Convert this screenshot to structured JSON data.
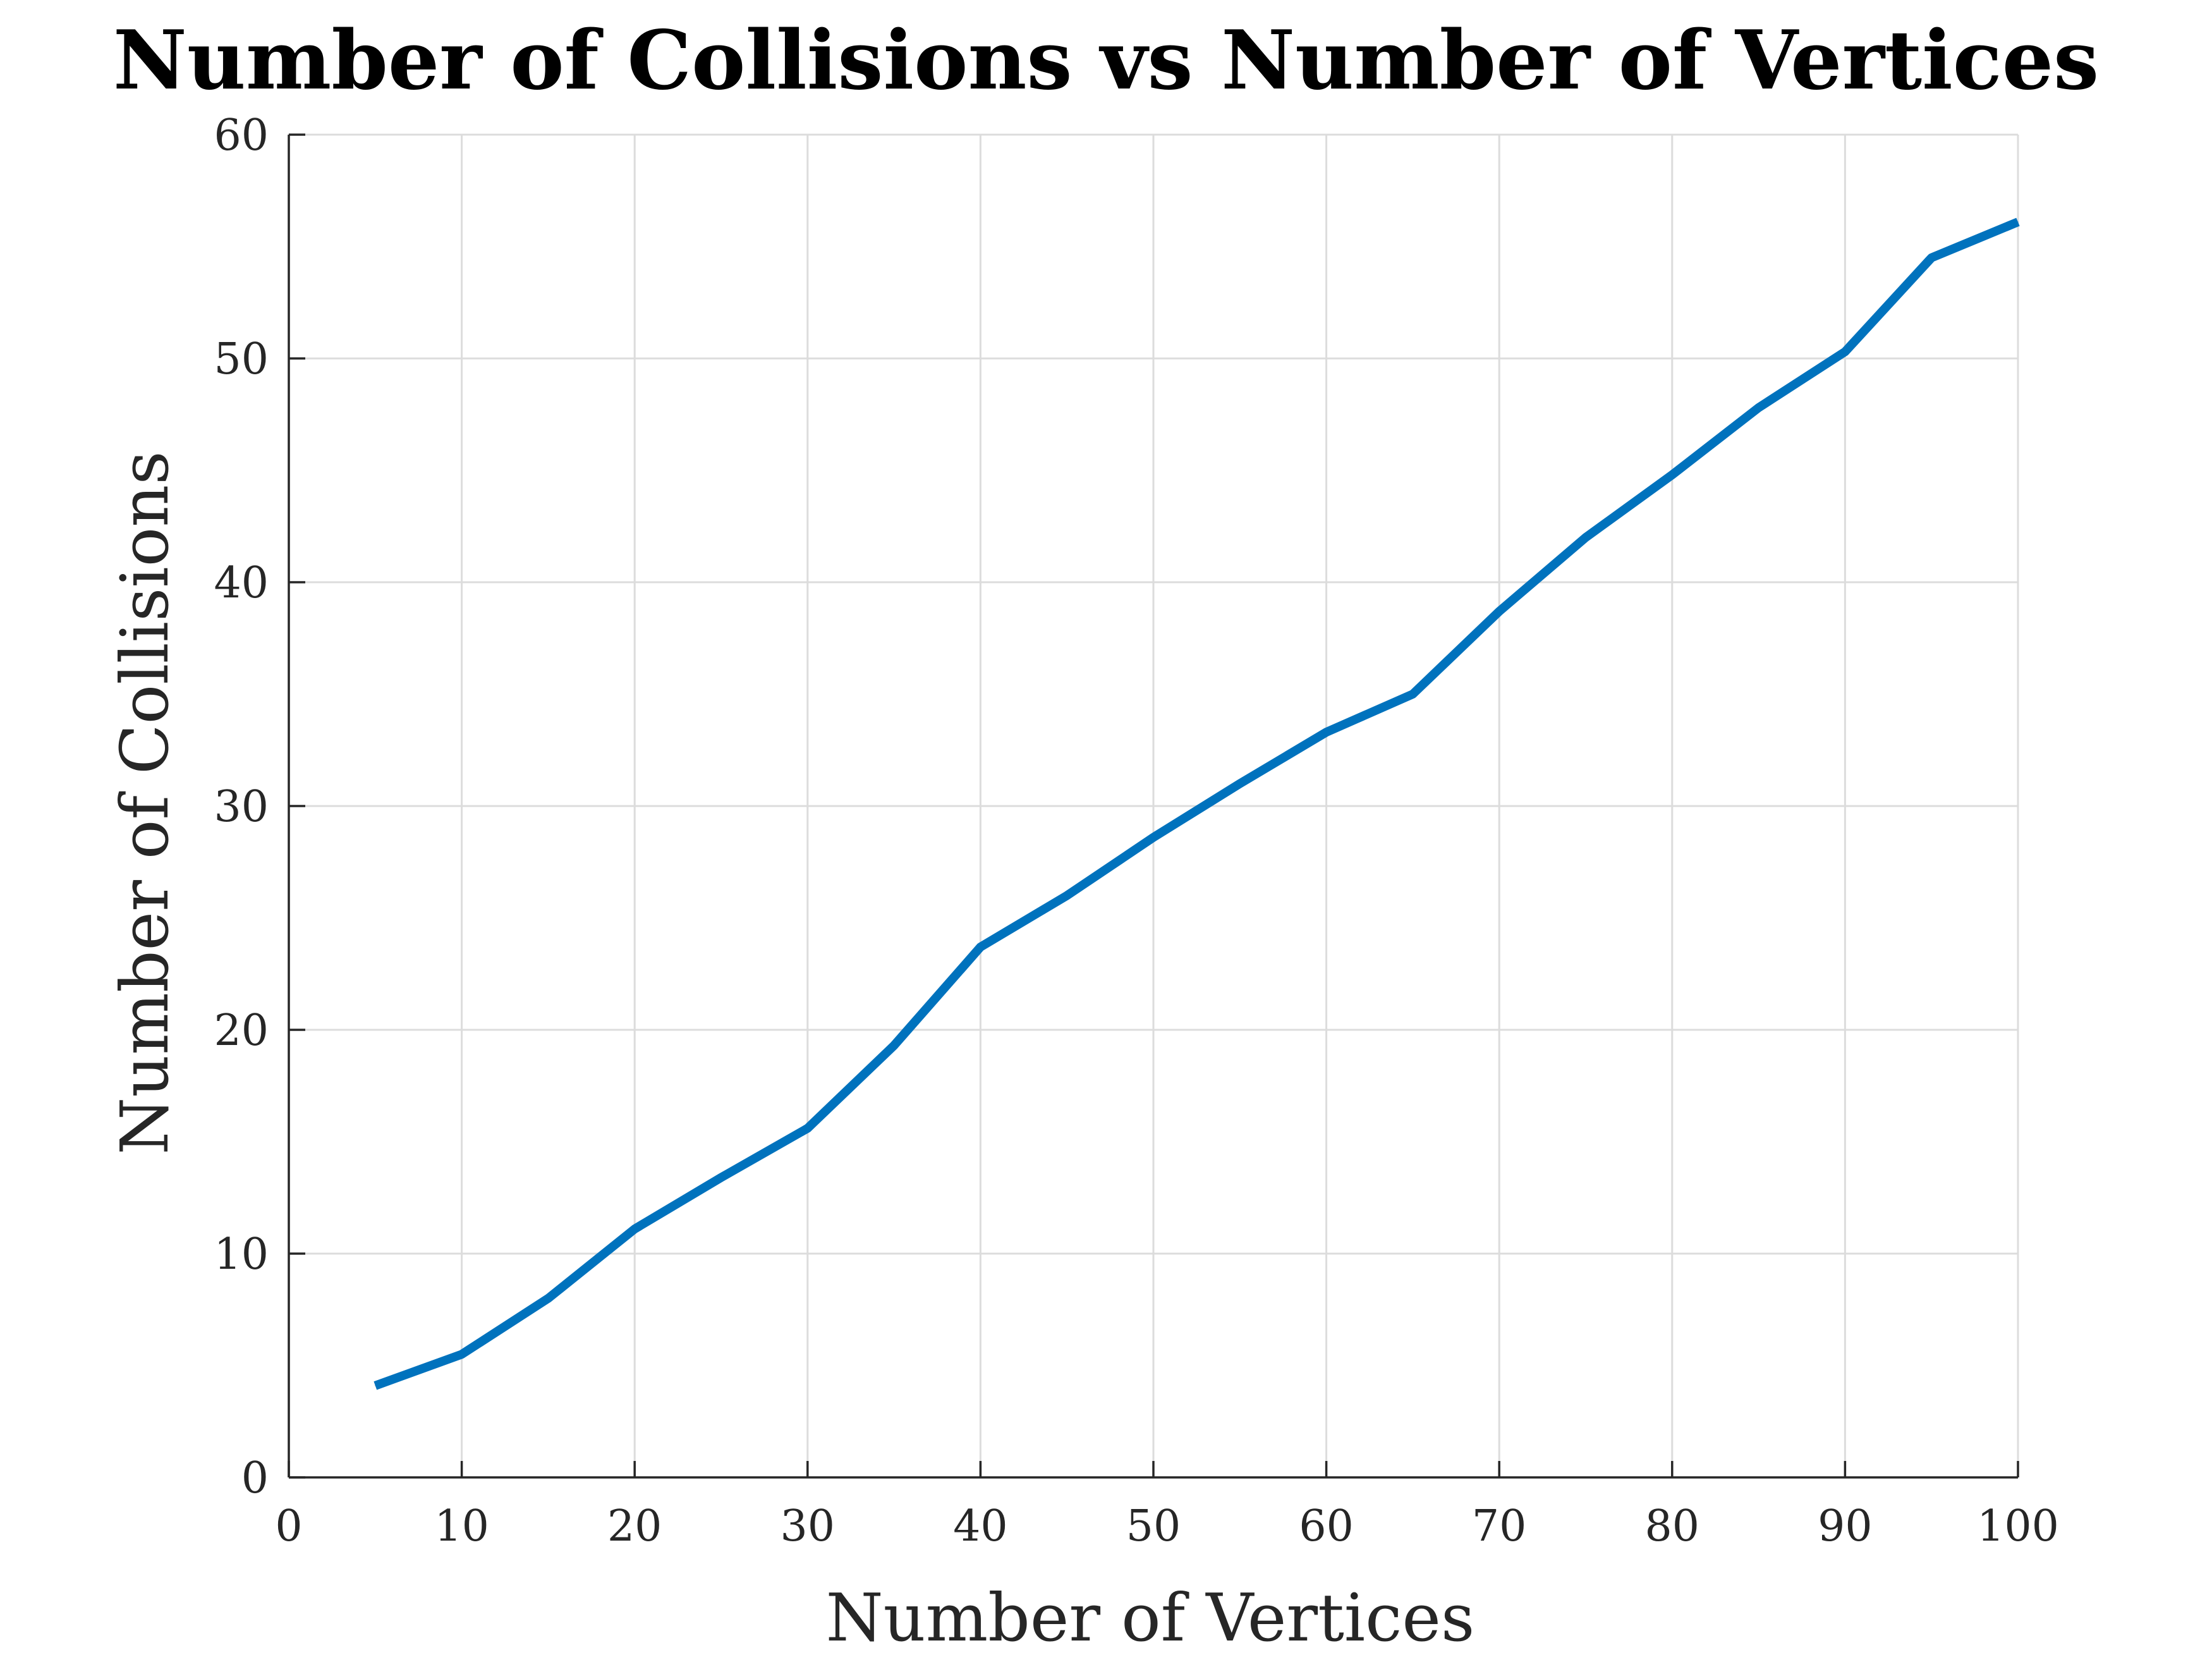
{
  "chart_data": {
    "type": "line",
    "title": "Number of Collisions vs Number of Vertices",
    "xlabel": "Number of Vertices",
    "ylabel": "Number of Collisions",
    "xlim": [
      0,
      100
    ],
    "ylim": [
      0,
      60
    ],
    "xticks": [
      0,
      10,
      20,
      30,
      40,
      50,
      60,
      70,
      80,
      90,
      100
    ],
    "yticks": [
      0,
      10,
      20,
      30,
      40,
      50,
      60
    ],
    "xtick_labels": [
      "0",
      "10",
      "20",
      "30",
      "40",
      "50",
      "60",
      "70",
      "80",
      "90",
      "100"
    ],
    "ytick_labels": [
      "0",
      "10",
      "20",
      "30",
      "40",
      "50",
      "60"
    ],
    "grid": true,
    "legend": "none",
    "colors": {
      "line": "#0072BD",
      "grid": "#dcdcdc",
      "axis": "#262626"
    },
    "series": [
      {
        "x": [
          5,
          10,
          15,
          20,
          25,
          30,
          35,
          40,
          45,
          50,
          55,
          60,
          65,
          70,
          75,
          80,
          85,
          90,
          95,
          100
        ],
        "y": [
          4.1,
          5.5,
          8.0,
          11.1,
          13.4,
          15.6,
          19.3,
          23.7,
          26.0,
          28.6,
          31.0,
          33.3,
          35.0,
          38.7,
          42.0,
          44.8,
          47.8,
          50.3,
          54.5,
          56.1
        ]
      }
    ]
  }
}
